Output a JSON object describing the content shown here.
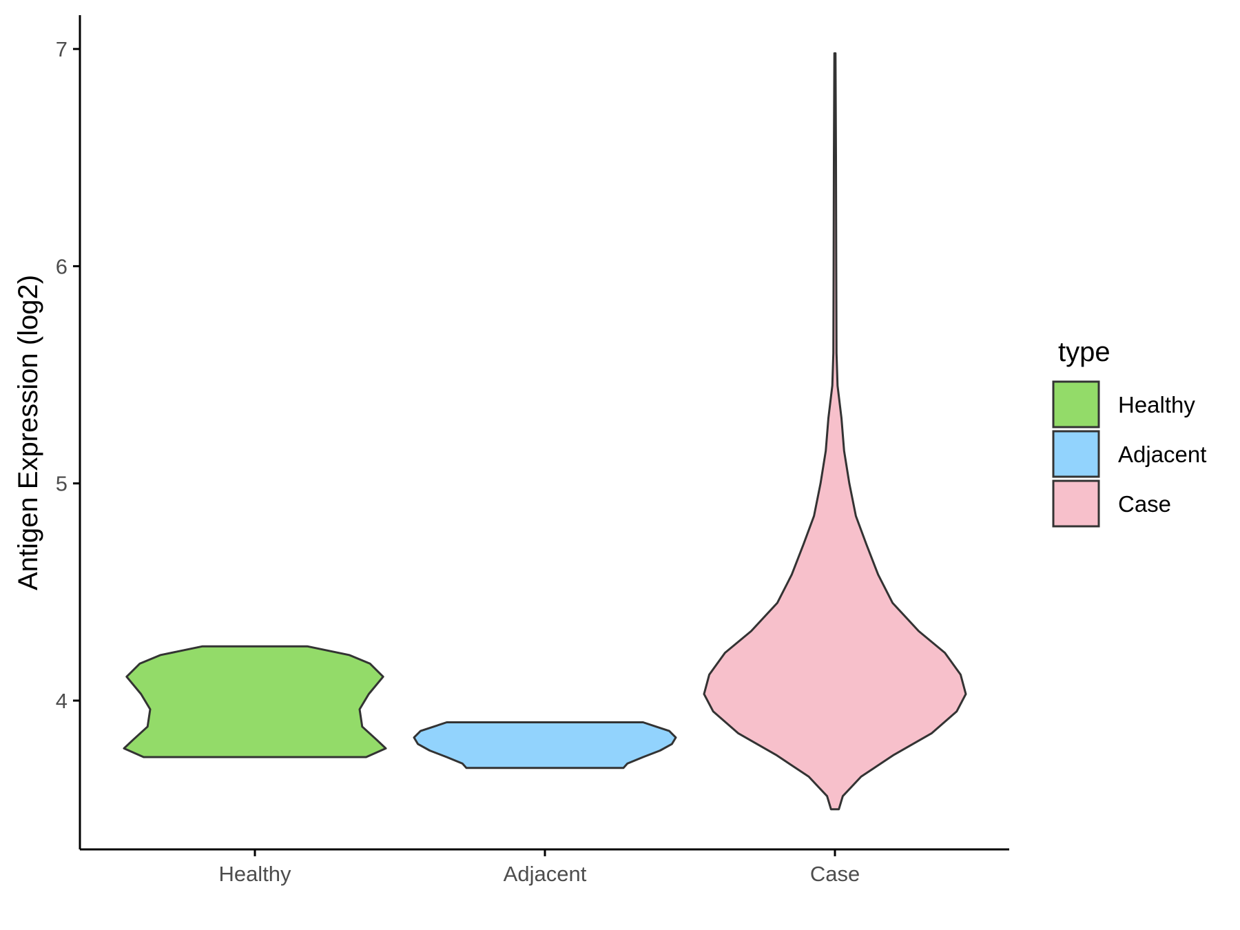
{
  "chart_data": {
    "type": "violin",
    "title": "",
    "xlabel": "",
    "ylabel": "Antigen Expression (log2)",
    "ylim": [
      3.35,
      7.15
    ],
    "yticks": [
      4,
      5,
      6,
      7
    ],
    "grid": false,
    "categories": [
      "Healthy",
      "Adjacent",
      "Case"
    ],
    "legend": {
      "title": "type",
      "position": "right",
      "items": [
        {
          "label": "Healthy",
          "color": "#93DB69"
        },
        {
          "label": "Adjacent",
          "color": "#92D3FD"
        },
        {
          "label": "Case",
          "color": "#F7C0CB"
        }
      ]
    },
    "series": [
      {
        "category": "Healthy",
        "color": "#93DB69",
        "min": 3.74,
        "max": 4.25,
        "profile": [
          [
            3.74,
            0.85
          ],
          [
            3.78,
            1.0
          ],
          [
            3.82,
            0.93
          ],
          [
            3.88,
            0.82
          ],
          [
            3.96,
            0.8
          ],
          [
            4.03,
            0.87
          ],
          [
            4.11,
            0.98
          ],
          [
            4.17,
            0.88
          ],
          [
            4.21,
            0.72
          ],
          [
            4.25,
            0.4
          ]
        ]
      },
      {
        "category": "Adjacent",
        "color": "#92D3FD",
        "min": 3.69,
        "max": 3.9,
        "profile": [
          [
            3.69,
            0.6
          ],
          [
            3.71,
            0.63
          ],
          [
            3.74,
            0.75
          ],
          [
            3.77,
            0.88
          ],
          [
            3.8,
            0.97
          ],
          [
            3.83,
            1.0
          ],
          [
            3.86,
            0.95
          ],
          [
            3.88,
            0.85
          ],
          [
            3.9,
            0.75
          ]
        ]
      },
      {
        "category": "Case",
        "color": "#F7C0CB",
        "min": 3.5,
        "max": 6.98,
        "profile": [
          [
            3.5,
            0.03
          ],
          [
            3.56,
            0.06
          ],
          [
            3.65,
            0.2
          ],
          [
            3.75,
            0.45
          ],
          [
            3.85,
            0.74
          ],
          [
            3.95,
            0.93
          ],
          [
            4.03,
            1.0
          ],
          [
            4.12,
            0.96
          ],
          [
            4.22,
            0.84
          ],
          [
            4.32,
            0.64
          ],
          [
            4.45,
            0.44
          ],
          [
            4.58,
            0.33
          ],
          [
            4.72,
            0.24
          ],
          [
            4.85,
            0.16
          ],
          [
            5.0,
            0.11
          ],
          [
            5.15,
            0.07
          ],
          [
            5.3,
            0.05
          ],
          [
            5.45,
            0.02
          ],
          [
            5.6,
            0.012
          ],
          [
            6.0,
            0.01
          ],
          [
            6.5,
            0.008
          ],
          [
            6.98,
            0.004
          ]
        ]
      }
    ]
  }
}
